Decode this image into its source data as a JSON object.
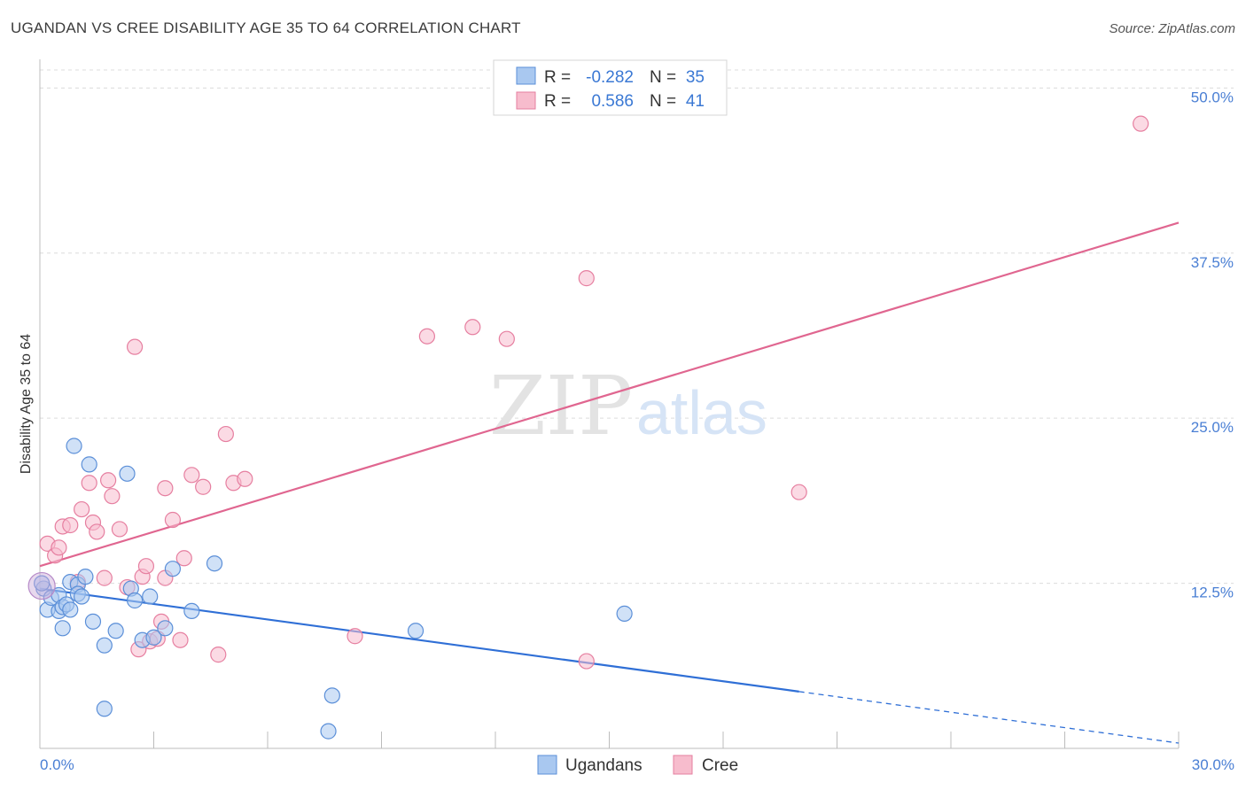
{
  "title": "UGANDAN VS CREE DISABILITY AGE 35 TO 64 CORRELATION CHART",
  "source": "Source: ZipAtlas.com",
  "watermark": {
    "zip": "ZIP",
    "atlas": "atlas"
  },
  "chart_data": {
    "type": "scatter",
    "title": "UGANDAN VS CREE DISABILITY AGE 35 TO 64 CORRELATION CHART",
    "xlabel": "",
    "ylabel": "Disability Age 35 to 64",
    "xlim": [
      0,
      30
    ],
    "ylim": [
      0,
      50
    ],
    "x_tick_labels": [
      {
        "value": 0,
        "label": "0.0%"
      },
      {
        "value": 30,
        "label": "30.0%"
      }
    ],
    "y_tick_labels": [
      {
        "value": 12.5,
        "label": "12.5%"
      },
      {
        "value": 25,
        "label": "25.0%"
      },
      {
        "value": 37.5,
        "label": "37.5%"
      },
      {
        "value": 50,
        "label": "50.0%"
      }
    ],
    "legend": {
      "position": "top-center",
      "rows": [
        {
          "r_label": "R =",
          "r_value": "-0.282",
          "n_label": "N =",
          "n_value": "35"
        },
        {
          "r_label": "R =",
          "r_value": "0.586",
          "n_label": "N =",
          "n_value": "41"
        }
      ]
    },
    "bottom_legend": [
      "Ugandans",
      "Cree"
    ],
    "colors": {
      "ugandans_fill": "#a9c8f0",
      "ugandans_stroke": "#5b8fd8",
      "ugandans_line": "#2f6fd6",
      "cree_fill": "#f7bccd",
      "cree_stroke": "#e67fa0",
      "cree_line": "#e06690",
      "accent_text": "#3a78d4"
    },
    "series": [
      {
        "name": "Ugandans",
        "points": [
          [
            0.1,
            12.1
          ],
          [
            0.2,
            10.5
          ],
          [
            0.3,
            11.4
          ],
          [
            0.5,
            11.6
          ],
          [
            0.5,
            10.4
          ],
          [
            0.6,
            10.7
          ],
          [
            0.6,
            9.1
          ],
          [
            0.7,
            10.9
          ],
          [
            0.8,
            12.6
          ],
          [
            0.8,
            10.5
          ],
          [
            0.9,
            22.9
          ],
          [
            1.0,
            12.4
          ],
          [
            1.0,
            11.7
          ],
          [
            1.1,
            11.5
          ],
          [
            1.2,
            13.0
          ],
          [
            1.3,
            21.5
          ],
          [
            1.4,
            9.6
          ],
          [
            1.7,
            7.8
          ],
          [
            1.7,
            3.0
          ],
          [
            2.0,
            8.9
          ],
          [
            2.3,
            20.8
          ],
          [
            2.4,
            12.1
          ],
          [
            2.5,
            11.2
          ],
          [
            2.7,
            8.2
          ],
          [
            2.9,
            11.5
          ],
          [
            3.0,
            8.4
          ],
          [
            3.3,
            9.1
          ],
          [
            3.5,
            13.6
          ],
          [
            4.0,
            10.4
          ],
          [
            4.6,
            14.0
          ],
          [
            7.6,
            1.3
          ],
          [
            7.7,
            4.0
          ],
          [
            9.9,
            8.9
          ],
          [
            15.4,
            10.2
          ],
          [
            0.05,
            12.5
          ]
        ],
        "trend": {
          "x0": 0,
          "y0": 12.1,
          "x1": 20.0,
          "y1": 4.3,
          "dashed_to_x": 30,
          "dashed_to_y": 0.4
        }
      },
      {
        "name": "Cree",
        "points": [
          [
            0.2,
            15.5
          ],
          [
            0.4,
            14.6
          ],
          [
            0.5,
            15.2
          ],
          [
            0.6,
            16.8
          ],
          [
            0.8,
            16.9
          ],
          [
            1.0,
            12.6
          ],
          [
            1.1,
            18.1
          ],
          [
            1.3,
            20.1
          ],
          [
            1.4,
            17.1
          ],
          [
            1.5,
            16.4
          ],
          [
            1.7,
            12.9
          ],
          [
            1.8,
            20.3
          ],
          [
            1.9,
            19.1
          ],
          [
            2.1,
            16.6
          ],
          [
            2.3,
            12.2
          ],
          [
            2.5,
            30.4
          ],
          [
            2.6,
            7.5
          ],
          [
            2.7,
            13.0
          ],
          [
            2.8,
            13.8
          ],
          [
            2.9,
            8.1
          ],
          [
            3.1,
            8.3
          ],
          [
            3.2,
            9.6
          ],
          [
            3.3,
            12.9
          ],
          [
            3.3,
            19.7
          ],
          [
            3.5,
            17.3
          ],
          [
            3.7,
            8.2
          ],
          [
            3.8,
            14.4
          ],
          [
            4.0,
            20.7
          ],
          [
            4.3,
            19.8
          ],
          [
            4.7,
            7.1
          ],
          [
            4.9,
            23.8
          ],
          [
            5.1,
            20.1
          ],
          [
            5.4,
            20.4
          ],
          [
            8.3,
            8.5
          ],
          [
            10.2,
            31.2
          ],
          [
            11.4,
            31.9
          ],
          [
            12.3,
            31.0
          ],
          [
            14.4,
            35.6
          ],
          [
            14.4,
            6.6
          ],
          [
            20.0,
            19.4
          ],
          [
            29.0,
            47.3
          ]
        ],
        "trend": {
          "x0": 0,
          "y0": 13.8,
          "x1": 30,
          "y1": 39.8
        }
      }
    ]
  }
}
